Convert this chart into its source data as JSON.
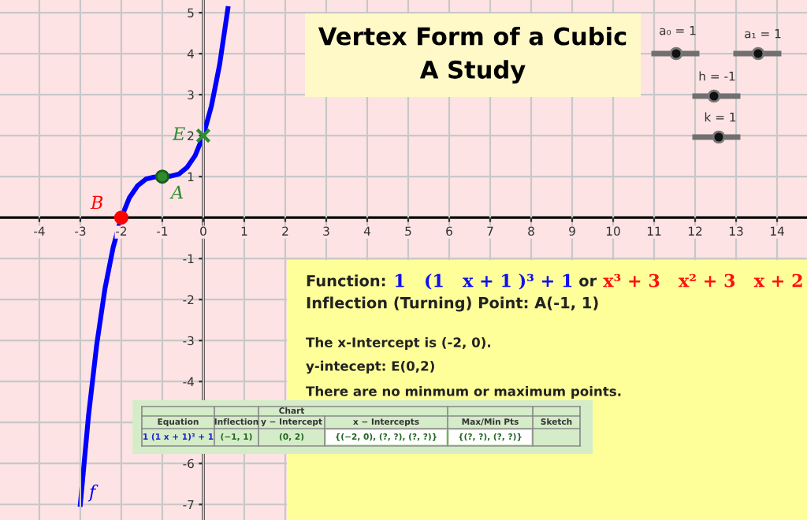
{
  "chart_data": {
    "type": "line",
    "title": "Vertex Form of a Cubic\nA Study",
    "xlim": [
      -4.96,
      14.73
    ],
    "ylim": [
      -7.38,
      5.31
    ],
    "xticks": [
      -4,
      -3,
      -2,
      -1,
      0,
      1,
      2,
      3,
      4,
      5,
      6,
      7,
      8,
      9,
      10,
      11,
      12,
      13,
      14
    ],
    "yticks": [
      -7,
      -6,
      {
        "value": -5,
        "label": null
      },
      -4,
      -3,
      -2,
      -1,
      1,
      2,
      3,
      4,
      5
    ],
    "grid": true,
    "line_style": "solid",
    "series": [
      {
        "name": "f",
        "color": "#0000ff",
        "marker": "none",
        "x": [
          -3.0,
          -2.8,
          -2.6,
          -2.4,
          -2.2,
          -2.0,
          -1.8,
          -1.6,
          -1.4,
          -1.2,
          -1.0,
          -0.8,
          -0.6,
          -0.4,
          -0.2,
          0.0,
          0.2,
          0.4,
          0.6
        ],
        "values": [
          -7,
          -4.83,
          -3.1,
          -1.74,
          -0.73,
          0,
          0.49,
          0.78,
          0.94,
          0.99,
          1,
          1.01,
          1.06,
          1.22,
          1.51,
          2,
          2.73,
          3.74,
          5.1
        ]
      },
      {
        "name": "B",
        "type": "scatter",
        "color": "#ff0000",
        "marker": "circle",
        "x": [
          -2
        ],
        "values": [
          0
        ]
      },
      {
        "name": "A",
        "type": "scatter",
        "color": "#2e8b2e",
        "marker": "circle",
        "x": [
          -1
        ],
        "values": [
          1
        ]
      },
      {
        "name": "E",
        "type": "scatter",
        "color": "#2e8b2e",
        "marker": "cross",
        "x": [
          0
        ],
        "values": [
          2
        ]
      }
    ],
    "annotations": [
      "a₀ = 1",
      "a₁ = 1",
      "h = -1",
      "k = 1",
      "Function:",
      "1   (1   x + 1 )³ + 1",
      "or",
      "x³ + 3   x² + 3   x + 2",
      "Inflection (Turning) Point: A(-1, 1)",
      "The x-Intercept is (-2, 0).",
      "y-intecept: E(0,2)",
      "There are no minmum or maximum points.",
      "Chart",
      "Equation",
      "Inflection",
      "y − Intercept",
      "x − Intercepts",
      "Max/Min Pts",
      "Sketch",
      "1 (1 x + 1)³ + 1",
      "(−1, 1)",
      "(0, 2)",
      "{(−2, 0), (?, ?), (?, ?)}",
      "{(?, ?), (?, ?)}"
    ]
  }
}
